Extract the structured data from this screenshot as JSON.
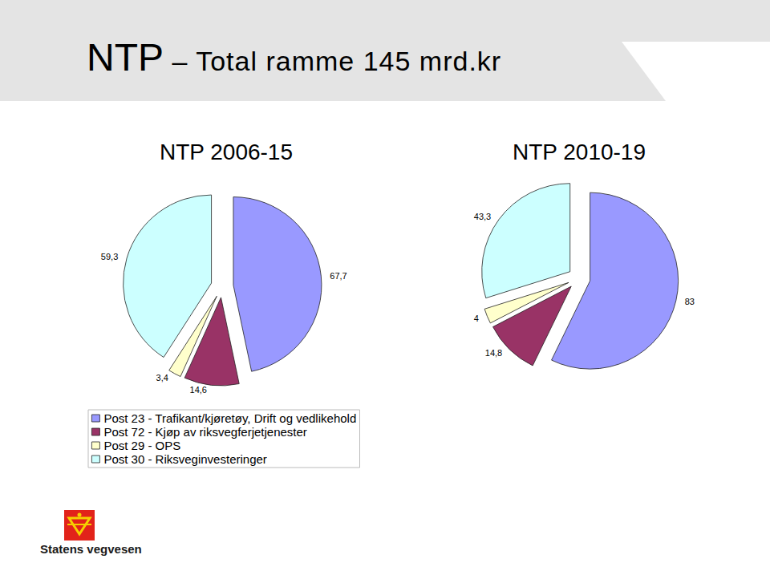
{
  "title": "NTP – Total ramme 145 mrd.kr",
  "chart_data": [
    {
      "type": "pie",
      "title": "NTP 2006-15",
      "categories": [
        "Post 23 - Trafikant/kjøretøy, Drift og vedlikehold",
        "Post 72 - Kjøp av riksvegferjetjenester",
        "Post 29 - OPS",
        "Post 30 - Riksveginvesteringer"
      ],
      "values": [
        67.7,
        14.6,
        3.4,
        59.3
      ],
      "value_labels": [
        "67,7",
        "14,6",
        "3,4",
        "59,3"
      ],
      "colors": [
        "#9999ff",
        "#993366",
        "#ffffcc",
        "#ccffff"
      ],
      "data_labels": true,
      "legend": "bottom left"
    },
    {
      "type": "pie",
      "title": "NTP 2010-19",
      "categories": [
        "Post 23 - Trafikant/kjøretøy, Drift og vedlikehold",
        "Post 72 - Kjøp av riksvegferjetjenester",
        "Post 29 - OPS",
        "Post 30 - Riksveginvesteringer"
      ],
      "values": [
        83,
        14.8,
        4,
        43.3
      ],
      "value_labels": [
        "83",
        "14,8",
        "4",
        "43,3"
      ],
      "colors": [
        "#9999ff",
        "#993366",
        "#ffffcc",
        "#ccffff"
      ],
      "data_labels": true
    }
  ],
  "logo": "Statens vegvesen"
}
